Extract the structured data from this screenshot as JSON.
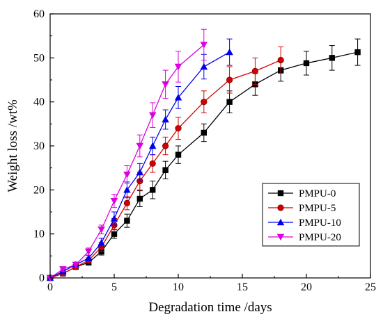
{
  "chart_data": {
    "type": "line",
    "xlabel": "Degradation time /days",
    "ylabel": "Weight loss /wt%",
    "xlim": [
      0,
      25
    ],
    "ylim": [
      0,
      60
    ],
    "x_ticks": [
      0,
      5,
      10,
      15,
      20,
      25
    ],
    "y_ticks": [
      0,
      10,
      20,
      30,
      40,
      50,
      60
    ],
    "grid": false,
    "legend_position": "bottom-right",
    "series": [
      {
        "name": "PMPU-0",
        "color": "#000000",
        "marker": "square",
        "x": [
          0,
          1,
          2,
          3,
          4,
          5,
          6,
          7,
          8,
          9,
          10,
          12,
          14,
          16,
          18,
          20,
          22,
          24
        ],
        "y": [
          0,
          1.0,
          2.5,
          3.5,
          6.0,
          10.0,
          13.0,
          18.0,
          20.0,
          24.5,
          28.0,
          33.0,
          40.0,
          44.0,
          47.2,
          48.8,
          50.0,
          51.3
        ],
        "err": [
          0,
          0.5,
          0.5,
          0.6,
          0.8,
          1.0,
          1.5,
          1.8,
          2.0,
          2.0,
          2.0,
          2.0,
          2.5,
          2.5,
          2.5,
          2.7,
          2.8,
          3.0
        ]
      },
      {
        "name": "PMPU-5",
        "color": "#d40000",
        "marker": "circle",
        "x": [
          0,
          1,
          2,
          3,
          4,
          5,
          6,
          7,
          8,
          9,
          10,
          12,
          14,
          16,
          18
        ],
        "y": [
          0,
          1.0,
          2.5,
          4.0,
          7.0,
          12.0,
          17.0,
          22.0,
          26.0,
          30.0,
          34.0,
          40.0,
          45.0,
          47.0,
          49.5
        ],
        "err": [
          0,
          0.5,
          0.5,
          0.6,
          1.0,
          1.5,
          1.5,
          2.0,
          2.0,
          2.0,
          2.5,
          2.5,
          3.0,
          3.0,
          3.0
        ]
      },
      {
        "name": "PMPU-10",
        "color": "#0000ee",
        "marker": "triangle-up",
        "x": [
          0,
          1,
          2,
          3,
          4,
          5,
          6,
          7,
          8,
          9,
          10,
          12,
          14
        ],
        "y": [
          0,
          1.5,
          3.0,
          4.5,
          8.0,
          13.5,
          20.0,
          24.0,
          30.0,
          36.0,
          41.0,
          48.0,
          51.3
        ],
        "err": [
          0,
          0.5,
          0.5,
          0.6,
          1.0,
          1.5,
          1.8,
          2.0,
          2.0,
          2.2,
          2.5,
          2.8,
          3.0
        ]
      },
      {
        "name": "PMPU-20",
        "color": "#dd00dd",
        "marker": "triangle-down",
        "x": [
          0,
          1,
          2,
          3,
          4,
          5,
          6,
          7,
          8,
          9,
          10,
          12
        ],
        "y": [
          0,
          2.0,
          3.0,
          6.0,
          11.0,
          17.5,
          23.5,
          30.0,
          37.0,
          44.0,
          48.0,
          53.0
        ],
        "err": [
          0,
          0.5,
          0.6,
          0.8,
          1.0,
          1.5,
          2.0,
          2.5,
          2.8,
          3.2,
          3.5,
          3.5
        ]
      }
    ]
  }
}
